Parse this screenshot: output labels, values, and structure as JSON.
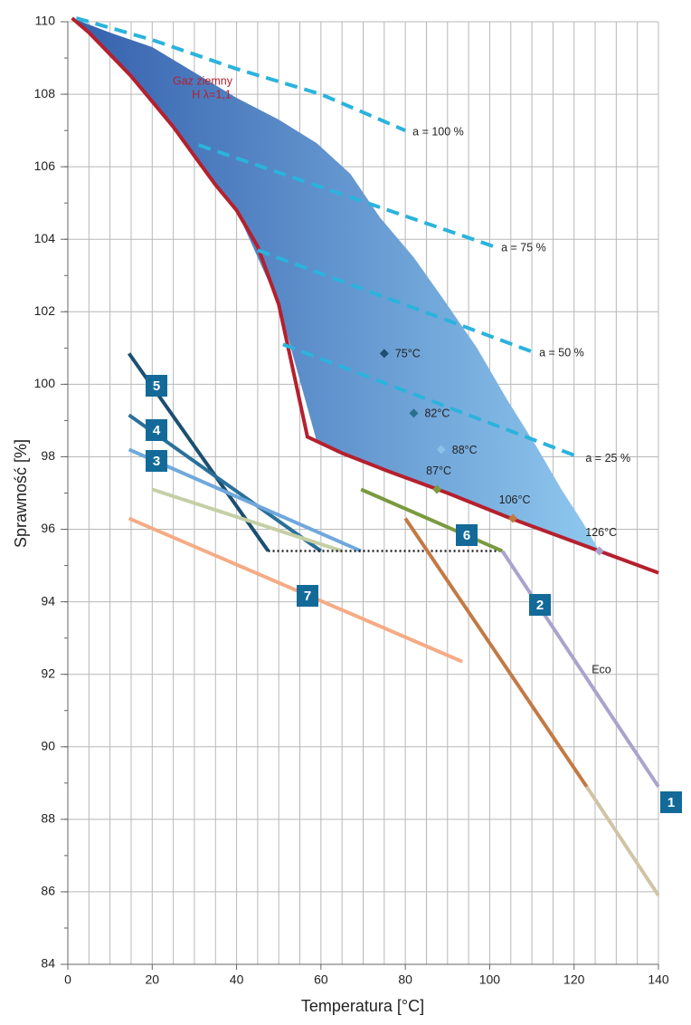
{
  "chart_data": {
    "type": "line",
    "x_label": "Temperatura [°C]",
    "y_label": "Sprawność [%]",
    "xlim": [
      0,
      140
    ],
    "ylim": [
      84,
      110
    ],
    "xticks": [
      0,
      20,
      40,
      60,
      80,
      100,
      120,
      140
    ],
    "yticks": [
      84,
      86,
      88,
      90,
      92,
      94,
      96,
      98,
      100,
      102,
      104,
      106,
      108,
      110
    ],
    "x_minor_step": 5,
    "y_minor_step": 1,
    "grid": true,
    "area": {
      "x": [
        1,
        10,
        20,
        30,
        40,
        50,
        59,
        67,
        74,
        82,
        89,
        97,
        104,
        111,
        117,
        122,
        125.5
      ],
      "values": [
        110.1,
        109.7,
        109.3,
        108.6,
        107.9,
        107.3,
        106.65,
        105.8,
        104.6,
        103.5,
        102.35,
        101.0,
        99.6,
        98.3,
        97.1,
        96.2,
        95.5
      ],
      "base": [
        110.1,
        109.1,
        107.8,
        106.3,
        104.8,
        102.2,
        98.43,
        98.0,
        97.69,
        97.34,
        97.04,
        96.72,
        96.35,
        96.06,
        95.81,
        95.59,
        95.42
      ],
      "color_start": "#3560ad",
      "color_end": "#8ec8ee"
    },
    "series": [
      {
        "color": "#b5202e",
        "style": "solid",
        "x": [
          1,
          5,
          10,
          15,
          20,
          25,
          30,
          35,
          40,
          45,
          50,
          53,
          56.8,
          65,
          76,
          90,
          105,
          126,
          140
        ],
        "values": [
          110.1,
          109.7,
          109.1,
          108.5,
          107.8,
          107.1,
          106.3,
          105.5,
          104.8,
          103.8,
          102.2,
          100.6,
          98.55,
          98.1,
          97.6,
          97.0,
          96.3,
          95.4,
          94.8
        ]
      },
      {
        "name": "a = 100 %",
        "color": "#2bb3dc",
        "style": "dashed",
        "x": [
          2,
          20,
          40,
          60,
          80
        ],
        "values": [
          110.1,
          109.5,
          108.7,
          108.0,
          107.0
        ]
      },
      {
        "name": "a = 75 %",
        "color": "#2bb3dc",
        "style": "dashed",
        "x": [
          31,
          101
        ],
        "values": [
          106.6,
          103.8
        ]
      },
      {
        "name": "a = 50 %",
        "color": "#2bb3dc",
        "style": "dashed",
        "x": [
          45,
          110
        ],
        "values": [
          103.7,
          100.9
        ]
      },
      {
        "name": "a = 25 %",
        "color": "#2bb3dc",
        "style": "dashed",
        "x": [
          51,
          121
        ],
        "values": [
          101.1,
          98.0
        ]
      },
      {
        "name": "5",
        "color": "#1b4f72",
        "style": "solid",
        "x": [
          14.5,
          47.5
        ],
        "values": [
          100.85,
          95.4
        ]
      },
      {
        "name": "4",
        "color": "#2a7099",
        "style": "solid",
        "x": [
          14.5,
          60
        ],
        "values": [
          99.15,
          95.4
        ]
      },
      {
        "name": "3",
        "color": "#6fa8dc",
        "style": "solid",
        "x": [
          14.5,
          69.5
        ],
        "values": [
          98.2,
          95.4
        ]
      },
      {
        "color": "#c5cfa5",
        "style": "solid",
        "x": [
          20,
          65
        ],
        "values": [
          97.1,
          95.4
        ]
      },
      {
        "name": "7",
        "color": "#f5ab85",
        "style": "solid",
        "x": [
          14.5,
          93.5
        ],
        "values": [
          96.3,
          92.35
        ]
      },
      {
        "color": "#222222",
        "style": "dotted",
        "x": [
          47.5,
          103
        ],
        "values": [
          95.4,
          95.4
        ]
      },
      {
        "name": "6",
        "color": "#7a9a40",
        "style": "solid",
        "x": [
          69.5,
          103
        ],
        "values": [
          97.1,
          95.4
        ]
      },
      {
        "name": "2",
        "color": "#a8a4cc",
        "style": "solid",
        "x": [
          103,
          140
        ],
        "values": [
          95.4,
          88.9
        ]
      },
      {
        "name": "1",
        "color": "#c27a45",
        "style": "solid",
        "x": [
          80,
          123
        ],
        "values": [
          96.3,
          88.9
        ]
      },
      {
        "color": "#cfc4a5",
        "style": "solid",
        "x": [
          123,
          140
        ],
        "values": [
          88.9,
          85.9
        ]
      }
    ],
    "points": {
      "x": [
        75,
        82,
        88.5,
        87.5,
        105.5,
        126
      ],
      "values": [
        100.85,
        99.2,
        98.2,
        97.1,
        96.3,
        95.4
      ],
      "labels": [
        "75°C",
        "82°C",
        "88°C",
        "87°C",
        "106°C",
        "126°C"
      ],
      "colors": [
        "#1f4e6e",
        "#2a6f8f",
        "#8cc0e8",
        "#7a9a40",
        "#c07a40",
        "#a8a0cc"
      ]
    },
    "annotations": [
      {
        "text": "Gaz ziemny",
        "color": "#b5202e"
      },
      {
        "text": "H λ=1,1",
        "color": "#b5202e"
      },
      {
        "text": "Eco",
        "color": "#222222"
      }
    ]
  }
}
